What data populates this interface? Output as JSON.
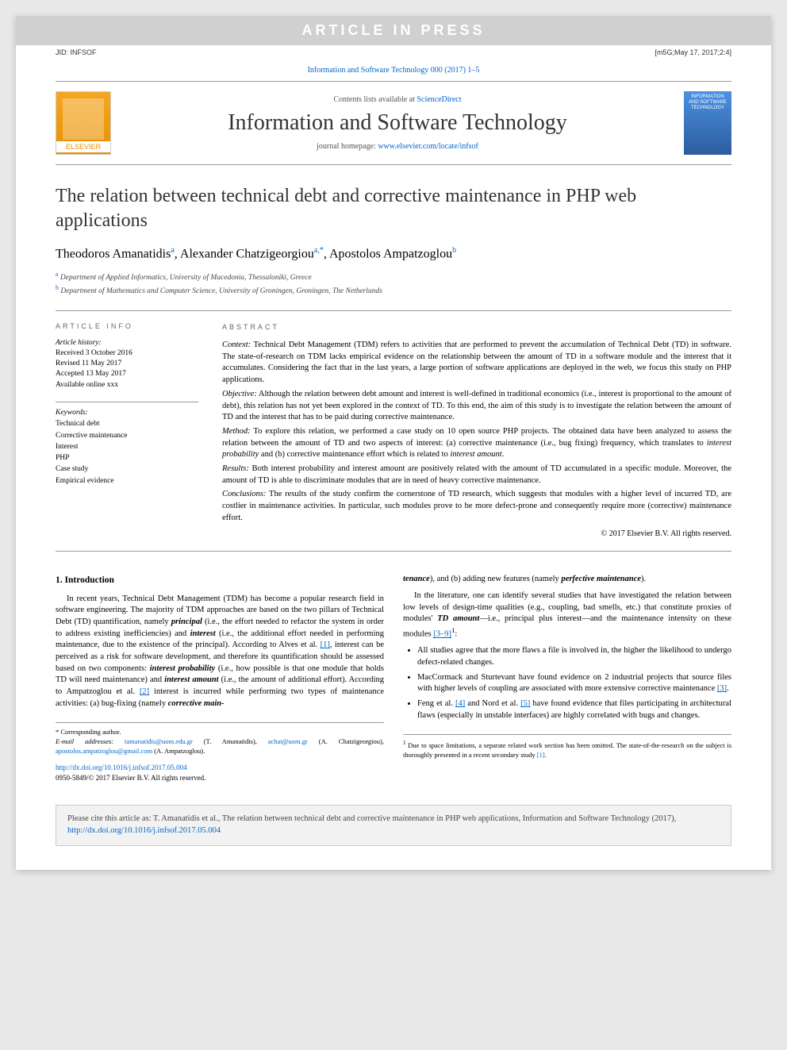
{
  "watermark": "ARTICLE IN PRESS",
  "header": {
    "jid": "JID: INFSOF",
    "stamp": "[m5G;May 17, 2017;2:4]"
  },
  "journal_ref": "Information and Software Technology 000 (2017) 1–5",
  "masthead": {
    "elsevier": "ELSEVIER",
    "contents_prefix": "Contents lists available at ",
    "contents_link": "ScienceDirect",
    "journal_name": "Information and Software Technology",
    "homepage_prefix": "journal homepage: ",
    "homepage_link": "www.elsevier.com/locate/infsof",
    "cover_text": "INFORMATION AND SOFTWARE TECHNOLOGY"
  },
  "title": "The relation between technical debt and corrective maintenance in PHP web applications",
  "authors_html": "Theodoros Amanatidis",
  "author1": "Theodoros Amanatidis",
  "author1_sup": "a",
  "author2": "Alexander Chatzigeorgiou",
  "author2_sup": "a,*",
  "author3": "Apostolos Ampatzoglou",
  "author3_sup": "b",
  "aff_a_sup": "a",
  "aff_a": "Department of Applied Informatics, University of Macedonia, Thessaloniki, Greece",
  "aff_b_sup": "b",
  "aff_b": "Department of Mathematics and Computer Science, University of Groningen, Groningen, The Netherlands",
  "info": {
    "heading": "ARTICLE INFO",
    "history_label": "Article history:",
    "received": "Received 3 October 2016",
    "revised": "Revised 11 May 2017",
    "accepted": "Accepted 13 May 2017",
    "online": "Available online xxx",
    "keywords_label": "Keywords:",
    "keywords": [
      "Technical debt",
      "Corrective maintenance",
      "Interest",
      "PHP",
      "Case study",
      "Empirical evidence"
    ]
  },
  "abstract": {
    "heading": "ABSTRACT",
    "context_label": "Context:",
    "context": "Technical Debt Management (TDM) refers to activities that are performed to prevent the accumulation of Technical Debt (TD) in software. The state-of-research on TDM lacks empirical evidence on the relationship between the amount of TD in a software module and the interest that it accumulates. Considering the fact that in the last years, a large portion of software applications are deployed in the web, we focus this study on PHP applications.",
    "objective_label": "Objective:",
    "objective": "Although the relation between debt amount and interest is well-defined in traditional economics (i.e., interest is proportional to the amount of debt), this relation has not yet been explored in the context of TD. To this end, the aim of this study is to investigate the relation between the amount of TD and the interest that has to be paid during corrective maintenance.",
    "method_label": "Method:",
    "method_pre": "To explore this relation, we performed a case study on 10 open source PHP projects. The obtained data have been analyzed to assess the relation between the amount of TD and two aspects of interest: (a) corrective maintenance (i.e., bug fixing) frequency, which translates to ",
    "method_it1": "interest probability",
    "method_mid": " and (b) corrective maintenance effort which is related to ",
    "method_it2": "interest amount",
    "method_post": ".",
    "results_label": "Results:",
    "results": "Both interest probability and interest amount are positively related with the amount of TD accumulated in a specific module. Moreover, the amount of TD is able to discriminate modules that are in need of heavy corrective maintenance.",
    "conclusions_label": "Conclusions:",
    "conclusions": "The results of the study confirm the cornerstone of TD research, which suggests that modules with a higher level of incurred TD, are costlier in maintenance activities. In particular, such modules prove to be more defect-prone and consequently require more (corrective) maintenance effort.",
    "copyright": "© 2017 Elsevier B.V. All rights reserved."
  },
  "body": {
    "section1_heading": "1. Introduction",
    "col1_p1_a": "In recent years, Technical Debt Management (TDM) has become a popular research field in software engineering. The majority of TDM approaches are based on the two pillars of Technical Debt (TD) quantification, namely ",
    "principal": "principal",
    "col1_p1_b": " (i.e., the effort needed to refactor the system in order to address existing inefficiencies) and ",
    "interest": "interest",
    "col1_p1_c": " (i.e., the additional effort needed in performing maintenance, due to the existence of the principal). According to Alves et al. ",
    "ref1": "[1]",
    "col1_p1_d": ", interest can be perceived as a risk for software development, and therefore its quantification should be assessed based on two components: ",
    "int_prob": "interest probability",
    "col1_p1_e": " (i.e., how possible is that one module that holds TD will need maintenance) and ",
    "int_amt": "interest amount",
    "col1_p1_f": " (i.e., the amount of additional effort). According to Ampatzoglou et al. ",
    "ref2": "[2]",
    "col1_p1_g": " interest is incurred while performing two types of maintenance activities: (a) bug-fixing (namely ",
    "corr_maint": "corrective main-",
    "col2_cont1": "tenance",
    "col2_cont2": "), and (b) adding new features (namely ",
    "perf_maint": "perfective maintenance",
    "col2_cont3": ").",
    "col2_p2_a": "In the literature, one can identify several studies that have investigated the relation between low levels of design-time qualities (e.g., coupling, bad smells, etc.) that constitute proxies of modules' ",
    "td_amount": "TD amount",
    "col2_p2_b": "—i.e., principal plus interest—and the maintenance intensity on these modules ",
    "ref39": "[3–9]",
    "fn1_sup": "1",
    "col2_p2_c": ":",
    "bullet1": "All studies agree that the more flaws a file is involved in, the higher the likelihood to undergo defect-related changes.",
    "bullet2_a": "MacCormack and Sturtevant have found evidence on 2 industrial projects that source files with higher levels of coupling are associated with more extensive corrective maintenance ",
    "ref3": "[3]",
    "bullet2_b": ".",
    "bullet3_a": "Feng et al. ",
    "ref4": "[4]",
    "bullet3_b": " and Nord et al. ",
    "ref5": "[5]",
    "bullet3_c": " have found evidence that files participating in architectural flaws (especially in unstable interfaces) are highly correlated with bugs and changes."
  },
  "footnotes": {
    "corr_label": "* Corresponding author.",
    "email_label": "E-mail addresses:",
    "email1": "tamanatidis@uom.edu.gr",
    "email1_name": " (T. Amanatidis), ",
    "email2": "achat@uom.gr",
    "email2_name": " (A. Chatzigeorgiou), ",
    "email3": "apostolos.ampatzoglou@gmail.com",
    "email3_name": " (A. Ampatzoglou).",
    "fn1_sup": "1",
    "fn1_text": " Due to space limitations, a separate related work section has been omitted. The state-of-the-research on the subject is thoroughly presented in a recent secondary study ",
    "fn1_ref": "[1]",
    "fn1_end": "."
  },
  "doi": {
    "url": "http://dx.doi.org/10.1016/j.infsof.2017.05.004",
    "issn": "0950-5849/© 2017 Elsevier B.V. All rights reserved."
  },
  "citation": {
    "text_a": "Please cite this article as: T. Amanatidis et al., The relation between technical debt and corrective maintenance in PHP web applications, Information and Software Technology (2017), ",
    "url": "http://dx.doi.org/10.1016/j.infsof.2017.05.004"
  },
  "colors": {
    "link": "#0066cc",
    "watermark_bg": "#d0d0d0",
    "page_bg": "#ffffff",
    "outer_bg": "#e8e8e8",
    "elsevier_orange": "#e89000",
    "cover_blue": "#4a90e2",
    "citation_bg": "#f2f2f2"
  }
}
